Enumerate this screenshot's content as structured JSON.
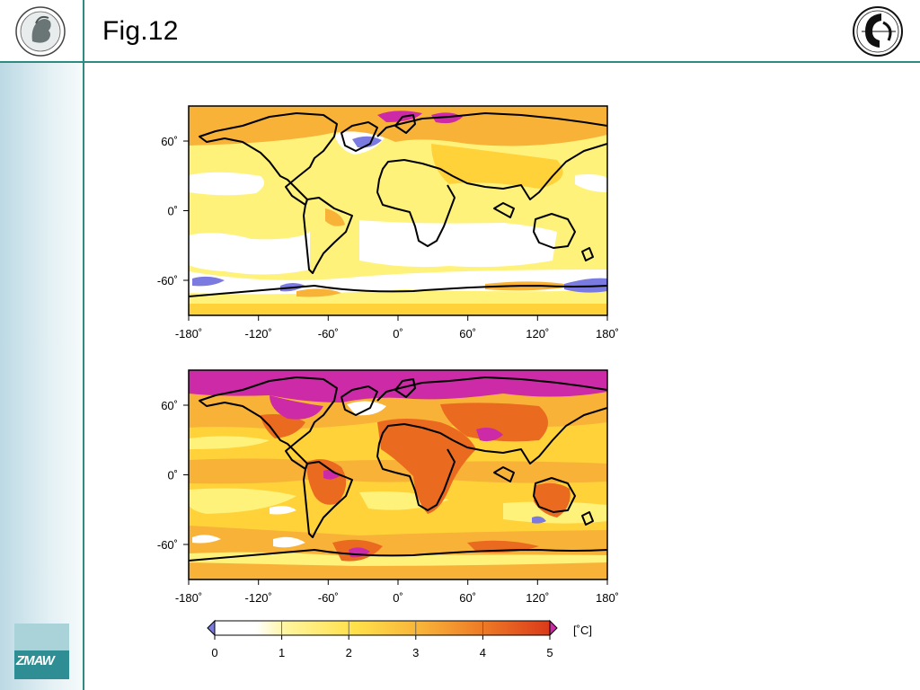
{
  "slide": {
    "title": "Fig.12",
    "brand_color": "#2f8a80",
    "logos": [
      "max-planck-minerva-logo",
      "dkrz-logo",
      "zmaw-logo"
    ],
    "footer_logo_text": "ZMAW"
  },
  "maps": [
    {
      "id": "top-map",
      "lon_ticks": [
        "-180˚",
        "-120˚",
        "-60˚",
        "0˚",
        "60˚",
        "120˚",
        "180˚"
      ],
      "lat_ticks": [
        "60˚",
        "0˚",
        "-60˚"
      ]
    },
    {
      "id": "bottom-map",
      "lon_ticks": [
        "-180˚",
        "-120˚",
        "-60˚",
        "0˚",
        "60˚",
        "120˚",
        "180˚"
      ],
      "lat_ticks": [
        "60˚",
        "0˚",
        "-60˚"
      ]
    }
  ],
  "colorbar": {
    "unit": "[˚C]",
    "ticks": [
      "0",
      "1",
      "2",
      "3",
      "4",
      "5"
    ],
    "colors": [
      "#ffffff",
      "#fff27a",
      "#ffd23a",
      "#f5a030",
      "#ea6a20",
      "#d8321a"
    ],
    "under_color": "#7a7ae0",
    "over_color": "#cc2aa6"
  }
}
